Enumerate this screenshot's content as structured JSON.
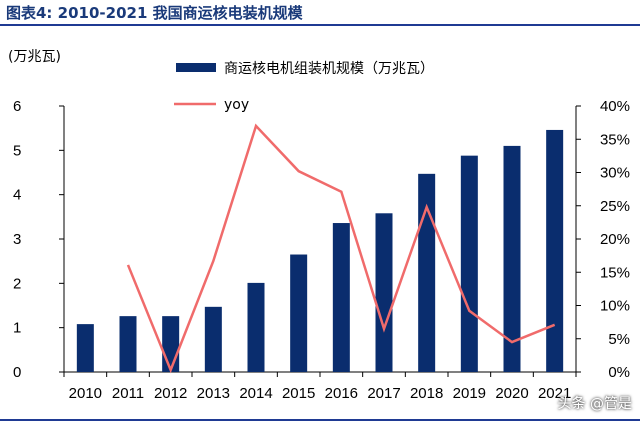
{
  "figure_title": "图表4:   2010-2021 我国商运核电装机规模",
  "watermark": "头条 @管是",
  "chart_data": {
    "type": "bar",
    "unit_label": "(万兆瓦)",
    "categories": [
      "2010",
      "2011",
      "2012",
      "2013",
      "2014",
      "2015",
      "2016",
      "2017",
      "2018",
      "2019",
      "2020",
      "2021"
    ],
    "series": [
      {
        "name": "商运核电机组装机规模（万兆瓦）",
        "type": "bar",
        "axis": "left",
        "color": "#0a2d6e",
        "values": [
          1.08,
          1.26,
          1.26,
          1.47,
          2.01,
          2.65,
          3.36,
          3.58,
          4.47,
          4.88,
          5.1,
          5.46
        ]
      },
      {
        "name": "yoy",
        "type": "line",
        "axis": "right",
        "color": "#f06b6b",
        "values": [
          null,
          16.1,
          0.3,
          16.7,
          37.0,
          30.2,
          27.1,
          6.5,
          24.8,
          9.2,
          4.5,
          7.1
        ]
      }
    ],
    "ylim_left": [
      0,
      6
    ],
    "yticks_left": [
      "0",
      "1",
      "2",
      "3",
      "4",
      "5",
      "6"
    ],
    "ylim_right": [
      0,
      40
    ],
    "yticks_right": [
      "0%",
      "5%",
      "10%",
      "15%",
      "20%",
      "25%",
      "30%",
      "35%",
      "40%"
    ],
    "legend_position": "top",
    "grid": false
  }
}
